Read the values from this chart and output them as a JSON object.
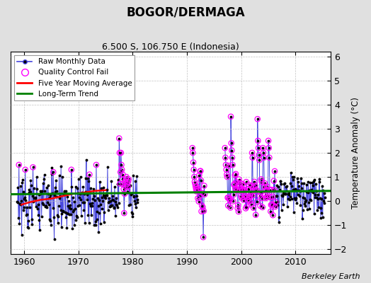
{
  "title": "BOGOR/DERMAGA",
  "subtitle": "6.500 S, 106.750 E (Indonesia)",
  "ylabel": "Temperature Anomaly (°C)",
  "credit": "Berkeley Earth",
  "xlim": [
    1957.5,
    2016.5
  ],
  "ylim": [
    -2.2,
    6.2
  ],
  "yticks": [
    -2,
    -1,
    0,
    1,
    2,
    3,
    4,
    5,
    6
  ],
  "xticks": [
    1960,
    1970,
    1980,
    1990,
    2000,
    2010
  ],
  "background_color": "#e0e0e0",
  "plot_bg": "#ffffff",
  "long_trend_x": [
    1957.5,
    2016.5
  ],
  "long_trend_y": [
    0.28,
    0.42
  ],
  "five_yr_ma_x": [
    1959.5,
    1961,
    1963,
    1965,
    1967,
    1969,
    1971,
    1973,
    1975
  ],
  "five_yr_ma_y": [
    -0.15,
    -0.05,
    0.05,
    0.1,
    0.2,
    0.3,
    0.35,
    0.42,
    0.45
  ],
  "seg1_start": 1958.5,
  "seg1_end": 1975.5,
  "seg2_start": 1975.5,
  "seg2_end": 1981.0,
  "seg3_start": 1991.0,
  "seg3_end": 1993.5,
  "seg4_start": 1997.0,
  "seg4_end": 2016.0
}
